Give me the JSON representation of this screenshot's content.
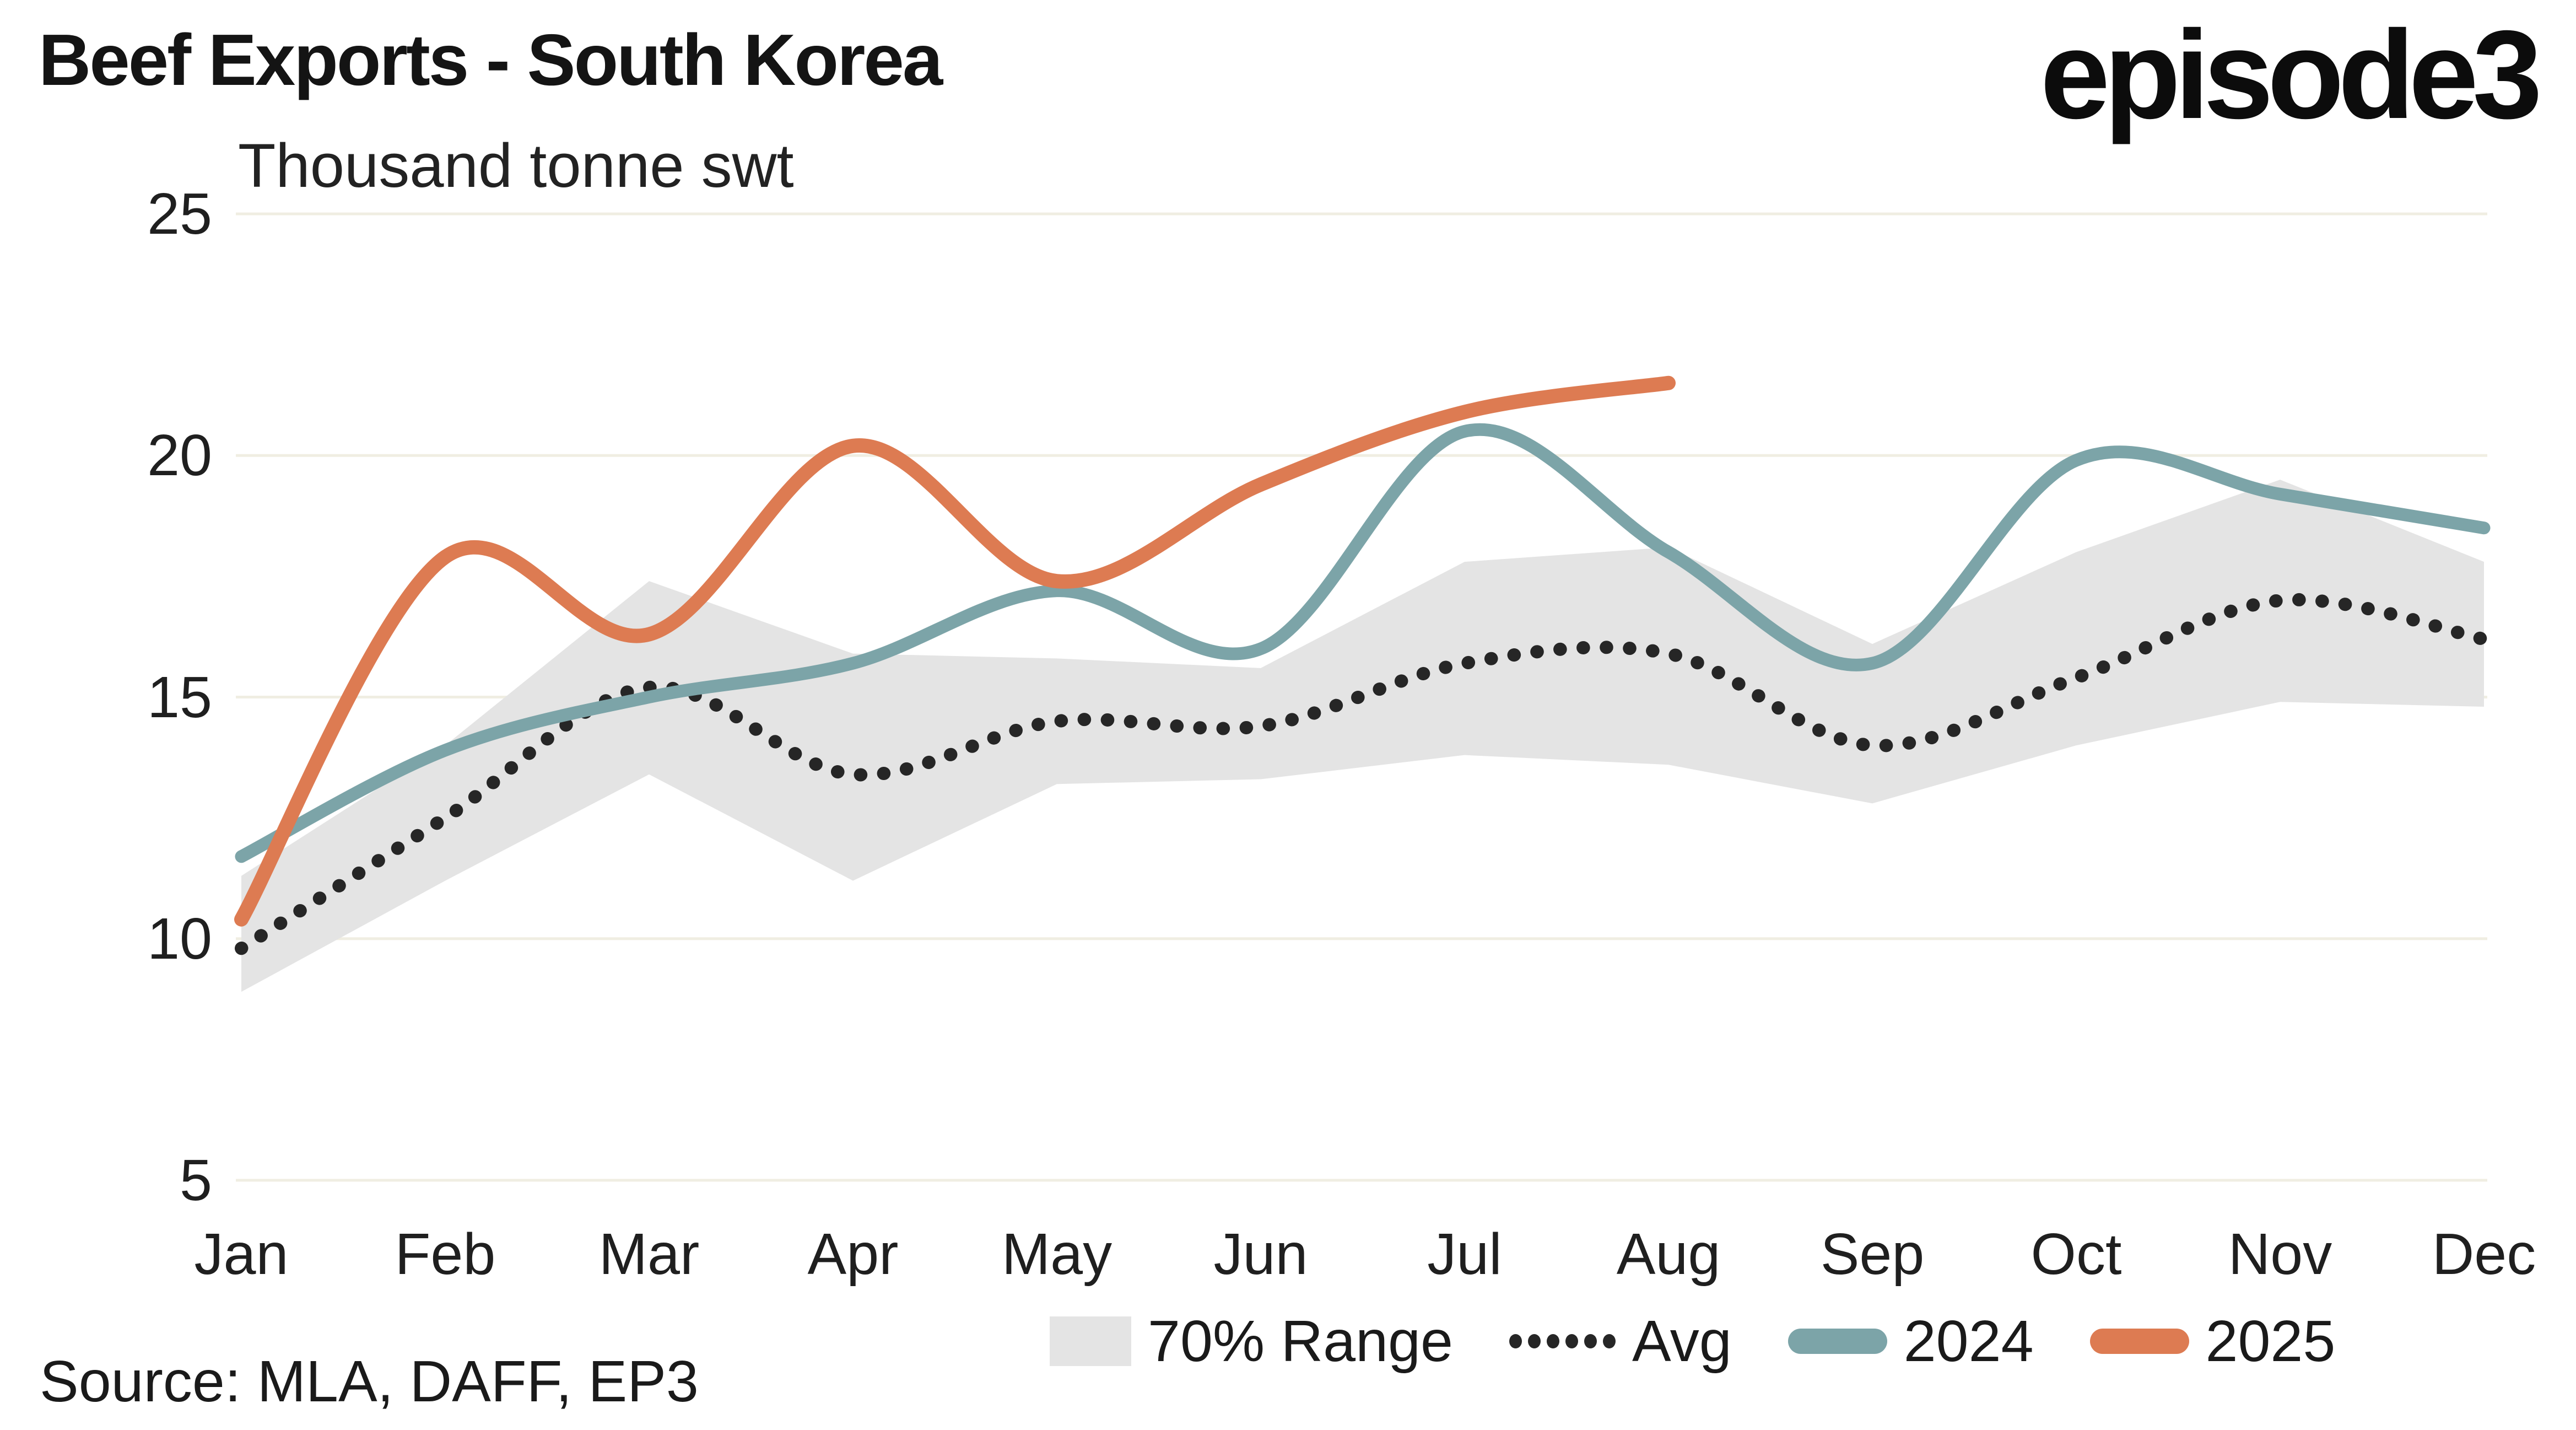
{
  "header": {
    "title": "Beef Exports - South Korea",
    "subtitle": "Thousand tonne swt",
    "logo": "episode3"
  },
  "footer": {
    "source": "Source: MLA, DAFF, EP3"
  },
  "legend": {
    "position": "bottom",
    "items": [
      {
        "label": "70% Range",
        "swatch": "gray-band-square"
      },
      {
        "label": "Avg",
        "swatch": "black-dotted-line"
      },
      {
        "label": "2024",
        "swatch": "teal-line",
        "color": "#7CA4A8"
      },
      {
        "label": "2025",
        "swatch": "orange-line",
        "color": "#DD7B52"
      }
    ]
  },
  "chart_data": {
    "type": "line",
    "title": "Beef Exports - South Korea",
    "ylabel": "Thousand tonne swt",
    "xlabel": "",
    "categories": [
      "Jan",
      "Feb",
      "Mar",
      "Apr",
      "May",
      "Jun",
      "Jul",
      "Aug",
      "Sep",
      "Oct",
      "Nov",
      "Dec"
    ],
    "yticks": [
      5,
      10,
      15,
      20,
      25
    ],
    "ylim": [
      5,
      25
    ],
    "grid": "horizontal-only",
    "legend_position": "bottom",
    "band": {
      "name": "70% Range",
      "color": "#e4e4e4",
      "lower": [
        8.9,
        11.2,
        13.4,
        11.2,
        13.2,
        13.3,
        13.8,
        13.6,
        12.8,
        14.0,
        14.9,
        14.8
      ],
      "upper": [
        11.3,
        14.0,
        17.4,
        15.9,
        15.8,
        15.6,
        17.8,
        18.1,
        16.1,
        18.0,
        19.5,
        17.8
      ]
    },
    "series": [
      {
        "name": "Avg",
        "style": "dotted",
        "color": "#262626",
        "values": [
          9.8,
          12.5,
          15.2,
          13.4,
          14.5,
          14.4,
          15.7,
          15.9,
          14.0,
          15.4,
          17.0,
          16.2
        ]
      },
      {
        "name": "2024",
        "style": "solid",
        "color": "#7CA4A8",
        "values": [
          11.7,
          13.9,
          15.0,
          15.7,
          17.2,
          16.0,
          20.5,
          18.0,
          15.7,
          19.9,
          19.2,
          18.5
        ]
      },
      {
        "name": "2025",
        "style": "solid",
        "color": "#DD7B52",
        "values": [
          10.4,
          17.9,
          16.3,
          20.2,
          17.4,
          19.4,
          20.9,
          21.5
        ]
      }
    ],
    "colors": {
      "gridline": "#f0eee2",
      "background": "#ffffff",
      "text": "#1a1a1a"
    }
  }
}
